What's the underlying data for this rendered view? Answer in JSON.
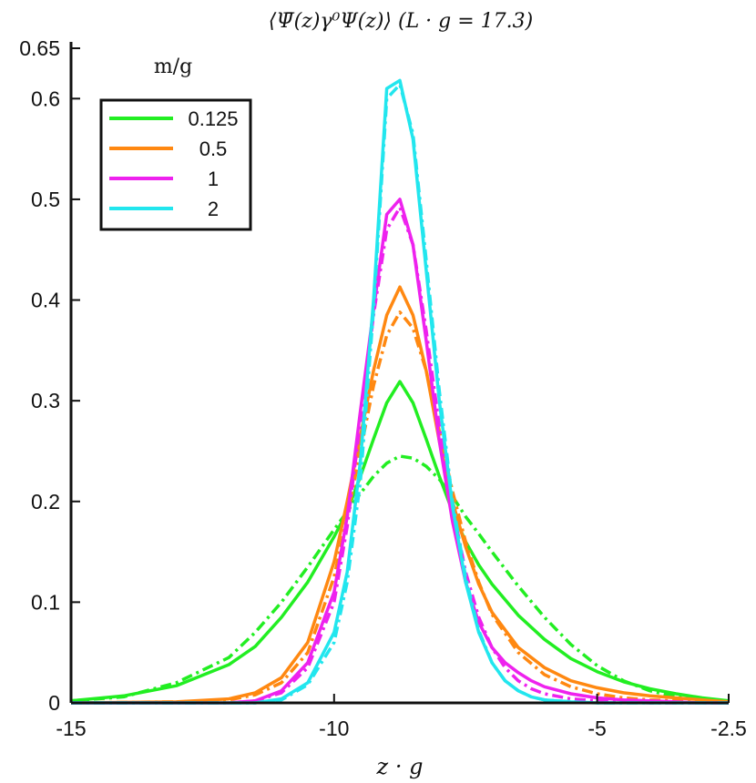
{
  "chart_data": {
    "type": "line",
    "title": "⟨Ψ̄(z)γ⁰Ψ(z)⟩ (L · g = 17.3)",
    "xlabel": "z · g",
    "ylabel": "",
    "xlim": [
      -15,
      -2.5
    ],
    "ylim": [
      0,
      0.65
    ],
    "xticks": [
      -15,
      -10,
      -5,
      -2.5
    ],
    "xtick_labels": [
      "-15",
      "-10",
      "-5",
      "-2.5"
    ],
    "yticks": [
      0,
      0.1,
      0.2,
      0.3,
      0.4,
      0.5,
      0.6,
      0.65
    ],
    "ytick_labels": [
      "0",
      "0.1",
      "0.2",
      "0.3",
      "0.4",
      "0.5",
      "0.6",
      "0.65"
    ],
    "grid": false,
    "legend_title": "m/g",
    "legend_position": "top-left",
    "series": [
      {
        "name": "0.125",
        "color": "#22ee22",
        "solid": {
          "x": [
            -15,
            -14,
            -13,
            -12,
            -11.5,
            -11,
            -10.5,
            -10,
            -9.75,
            -9.5,
            -9.25,
            -9.0,
            -8.75,
            -8.5,
            -8.25,
            -8.0,
            -7.75,
            -7.5,
            -7.25,
            -7.0,
            -6.5,
            -6.0,
            -5.5,
            -5.0,
            -4.5,
            -4.0,
            -3.5,
            -3.0,
            -2.5
          ],
          "y": [
            0.002,
            0.007,
            0.017,
            0.038,
            0.056,
            0.085,
            0.12,
            0.165,
            0.19,
            0.225,
            0.262,
            0.298,
            0.319,
            0.298,
            0.262,
            0.225,
            0.19,
            0.16,
            0.137,
            0.118,
            0.087,
            0.063,
            0.044,
            0.031,
            0.021,
            0.014,
            0.009,
            0.005,
            0.002
          ]
        },
        "dashed": {
          "x": [
            -15,
            -14,
            -13,
            -12,
            -11.5,
            -11,
            -10.5,
            -10,
            -9.75,
            -9.5,
            -9.25,
            -9.0,
            -8.75,
            -8.5,
            -8.25,
            -8.0,
            -7.75,
            -7.5,
            -7.25,
            -7.0,
            -6.5,
            -6.0,
            -5.5,
            -5.0,
            -4.5,
            -4.0,
            -3.5,
            -3.0,
            -2.5
          ],
          "y": [
            0.002,
            0.006,
            0.02,
            0.045,
            0.07,
            0.1,
            0.135,
            0.172,
            0.19,
            0.208,
            0.225,
            0.238,
            0.245,
            0.243,
            0.235,
            0.222,
            0.205,
            0.185,
            0.168,
            0.15,
            0.116,
            0.085,
            0.058,
            0.037,
            0.022,
            0.012,
            0.006,
            0.003,
            0.001
          ]
        }
      },
      {
        "name": "0.5",
        "color": "#ff8811",
        "solid": {
          "x": [
            -15,
            -13,
            -12,
            -11.5,
            -11,
            -10.5,
            -10,
            -9.75,
            -9.5,
            -9.25,
            -9.0,
            -8.75,
            -8.5,
            -8.25,
            -8.0,
            -7.75,
            -7.5,
            -7.25,
            -7.0,
            -6.5,
            -6.0,
            -5.5,
            -5.0,
            -4.5,
            -4.0,
            -3.5,
            -3.0,
            -2.5
          ],
          "y": [
            0.0,
            0.001,
            0.004,
            0.01,
            0.025,
            0.06,
            0.14,
            0.2,
            0.265,
            0.33,
            0.385,
            0.413,
            0.385,
            0.33,
            0.26,
            0.2,
            0.155,
            0.118,
            0.09,
            0.055,
            0.035,
            0.022,
            0.015,
            0.01,
            0.007,
            0.005,
            0.003,
            0.001
          ]
        },
        "dashed": {
          "x": [
            -15,
            -13,
            -12,
            -11.5,
            -11,
            -10.5,
            -10,
            -9.75,
            -9.5,
            -9.25,
            -9.0,
            -8.75,
            -8.5,
            -8.25,
            -8.0,
            -7.75,
            -7.5,
            -7.25,
            -7.0,
            -6.5,
            -6.0,
            -5.5,
            -5.0,
            -4.5,
            -4.0,
            -3.5,
            -3.0,
            -2.5
          ],
          "y": [
            0.0,
            0.001,
            0.003,
            0.008,
            0.02,
            0.05,
            0.125,
            0.185,
            0.25,
            0.315,
            0.365,
            0.388,
            0.372,
            0.33,
            0.27,
            0.21,
            0.16,
            0.12,
            0.088,
            0.05,
            0.028,
            0.016,
            0.009,
            0.005,
            0.003,
            0.002,
            0.001,
            0.0
          ]
        }
      },
      {
        "name": "1",
        "color": "#ee22ee",
        "solid": {
          "x": [
            -15,
            -12,
            -11.5,
            -11,
            -10.5,
            -10,
            -9.75,
            -9.5,
            -9.25,
            -9.0,
            -8.75,
            -8.5,
            -8.25,
            -8.0,
            -7.75,
            -7.5,
            -7.25,
            -7.0,
            -6.75,
            -6.5,
            -6.25,
            -6.0,
            -5.5,
            -5.0,
            -4.5,
            -4.0,
            -3.5,
            -3.0,
            -2.5
          ],
          "y": [
            0.0,
            0.0,
            0.002,
            0.012,
            0.04,
            0.11,
            0.185,
            0.29,
            0.39,
            0.485,
            0.5,
            0.455,
            0.36,
            0.26,
            0.18,
            0.12,
            0.08,
            0.055,
            0.04,
            0.03,
            0.022,
            0.016,
            0.009,
            0.005,
            0.003,
            0.002,
            0.001,
            0.0,
            0.0
          ]
        },
        "dashed": {
          "x": [
            -15,
            -12,
            -11.5,
            -11,
            -10.5,
            -10,
            -9.75,
            -9.5,
            -9.25,
            -9.0,
            -8.75,
            -8.5,
            -8.25,
            -8.0,
            -7.75,
            -7.5,
            -7.25,
            -7.0,
            -6.75,
            -6.5,
            -6.25,
            -6.0,
            -5.5,
            -5.0,
            -4.5,
            -4.0,
            -3.5,
            -3.0,
            -2.5
          ],
          "y": [
            0.0,
            0.0,
            0.002,
            0.01,
            0.035,
            0.1,
            0.175,
            0.28,
            0.385,
            0.47,
            0.492,
            0.455,
            0.37,
            0.275,
            0.195,
            0.13,
            0.085,
            0.055,
            0.035,
            0.022,
            0.014,
            0.009,
            0.004,
            0.002,
            0.001,
            0.0,
            0.0,
            0.0,
            0.0
          ]
        }
      },
      {
        "name": "2",
        "color": "#22e6ee",
        "solid": {
          "x": [
            -15,
            -12,
            -11.5,
            -11,
            -10.5,
            -10,
            -9.75,
            -9.5,
            -9.25,
            -9.0,
            -8.75,
            -8.5,
            -8.25,
            -8.0,
            -7.75,
            -7.5,
            -7.25,
            -7.0,
            -6.75,
            -6.5,
            -6.25,
            -6.0,
            -5.5,
            -5.0,
            -4.5,
            -4.0,
            -3.5,
            -3.0,
            -2.5
          ],
          "y": [
            0.0,
            0.0,
            0.0,
            0.004,
            0.02,
            0.07,
            0.13,
            0.24,
            0.4,
            0.61,
            0.618,
            0.56,
            0.43,
            0.3,
            0.195,
            0.12,
            0.07,
            0.04,
            0.022,
            0.012,
            0.006,
            0.003,
            0.001,
            0.0,
            0.0,
            0.0,
            0.0,
            0.0,
            0.0
          ]
        },
        "dashed": {
          "x": [
            -15,
            -12,
            -11.5,
            -11,
            -10.5,
            -10,
            -9.75,
            -9.5,
            -9.25,
            -9.0,
            -8.75,
            -8.5,
            -8.25,
            -8.0,
            -7.75,
            -7.5,
            -7.25,
            -7.0,
            -6.75,
            -6.5,
            -6.25,
            -6.0,
            -5.5,
            -5.0,
            -4.5,
            -4.0,
            -3.5,
            -3.0,
            -2.5
          ],
          "y": [
            0.0,
            0.0,
            0.0,
            0.003,
            0.018,
            0.06,
            0.12,
            0.22,
            0.39,
            0.6,
            0.614,
            0.565,
            0.44,
            0.31,
            0.2,
            0.125,
            0.072,
            0.04,
            0.022,
            0.012,
            0.006,
            0.003,
            0.001,
            0.0,
            0.0,
            0.0,
            0.0,
            0.0,
            0.0
          ]
        }
      }
    ]
  }
}
